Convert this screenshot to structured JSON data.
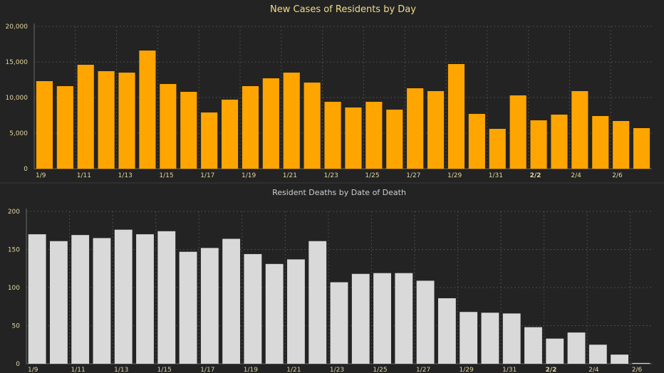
{
  "colors": {
    "background": "#232323",
    "cases_bar": "#FFA500",
    "deaths_bar": "#D9D9D9",
    "title_cases": "#F2DC8A",
    "title_deaths": "#CFCFCF",
    "tick_cases": "#E3D7A3",
    "tick_deaths": "#E3D7A3",
    "grid": "#4a4a4a"
  },
  "chart_data": [
    {
      "type": "bar",
      "title": "New Cases of Residents by Day",
      "xlabel": "",
      "ylabel": "",
      "ylim": [
        0,
        20000
      ],
      "yticks": [
        "0",
        "5,000",
        "10,000",
        "15,000",
        "20,000"
      ],
      "ytick_values": [
        0,
        5000,
        10000,
        15000,
        20000
      ],
      "grid": true,
      "categories": [
        "1/9",
        "1/10",
        "1/11",
        "1/12",
        "1/13",
        "1/14",
        "1/15",
        "1/16",
        "1/17",
        "1/18",
        "1/19",
        "1/20",
        "1/21",
        "1/22",
        "1/23",
        "1/24",
        "1/25",
        "1/26",
        "1/27",
        "1/28",
        "1/29",
        "1/30",
        "1/31",
        "2/1",
        "2/2",
        "2/3",
        "2/4",
        "2/5",
        "2/6",
        "2/7"
      ],
      "xtick_labels": [
        "1/9",
        "",
        "1/11",
        "",
        "1/13",
        "",
        "1/15",
        "",
        "1/17",
        "",
        "1/19",
        "",
        "1/21",
        "",
        "1/23",
        "",
        "1/25",
        "",
        "1/27",
        "",
        "1/29",
        "",
        "1/31",
        "",
        "2/2",
        "",
        "2/4",
        "",
        "2/6",
        ""
      ],
      "values": [
        12300,
        11600,
        14600,
        13700,
        13500,
        16600,
        11900,
        10800,
        7900,
        9700,
        11600,
        12700,
        13500,
        12100,
        9400,
        8600,
        9400,
        8300,
        11300,
        10900,
        14700,
        7700,
        5600,
        10300,
        6800,
        7600,
        10900,
        7400,
        6700,
        5700
      ]
    },
    {
      "type": "bar",
      "title": "Resident Deaths by Date of Death",
      "xlabel": "",
      "ylabel": "",
      "ylim": [
        0,
        200
      ],
      "yticks": [
        "0",
        "50",
        "100",
        "150",
        "200"
      ],
      "ytick_values": [
        0,
        50,
        100,
        150,
        200
      ],
      "grid": true,
      "categories": [
        "1/9",
        "1/10",
        "1/11",
        "1/12",
        "1/13",
        "1/14",
        "1/15",
        "1/16",
        "1/17",
        "1/18",
        "1/19",
        "1/20",
        "1/21",
        "1/22",
        "1/23",
        "1/24",
        "1/25",
        "1/26",
        "1/27",
        "1/28",
        "1/29",
        "1/30",
        "1/31",
        "2/1",
        "2/2",
        "2/3",
        "2/4",
        "2/5",
        "2/6"
      ],
      "xtick_labels": [
        "1/9",
        "",
        "1/11",
        "",
        "1/13",
        "",
        "1/15",
        "",
        "1/17",
        "",
        "1/19",
        "",
        "1/21",
        "",
        "1/23",
        "",
        "1/25",
        "",
        "1/27",
        "",
        "1/29",
        "",
        "1/31",
        "",
        "2/2",
        "",
        "2/4",
        "",
        "2/6"
      ],
      "values": [
        170,
        161,
        169,
        165,
        176,
        170,
        174,
        147,
        152,
        164,
        144,
        131,
        137,
        161,
        107,
        118,
        119,
        119,
        109,
        86,
        68,
        67,
        66,
        48,
        33,
        41,
        25,
        12,
        1
      ]
    }
  ]
}
